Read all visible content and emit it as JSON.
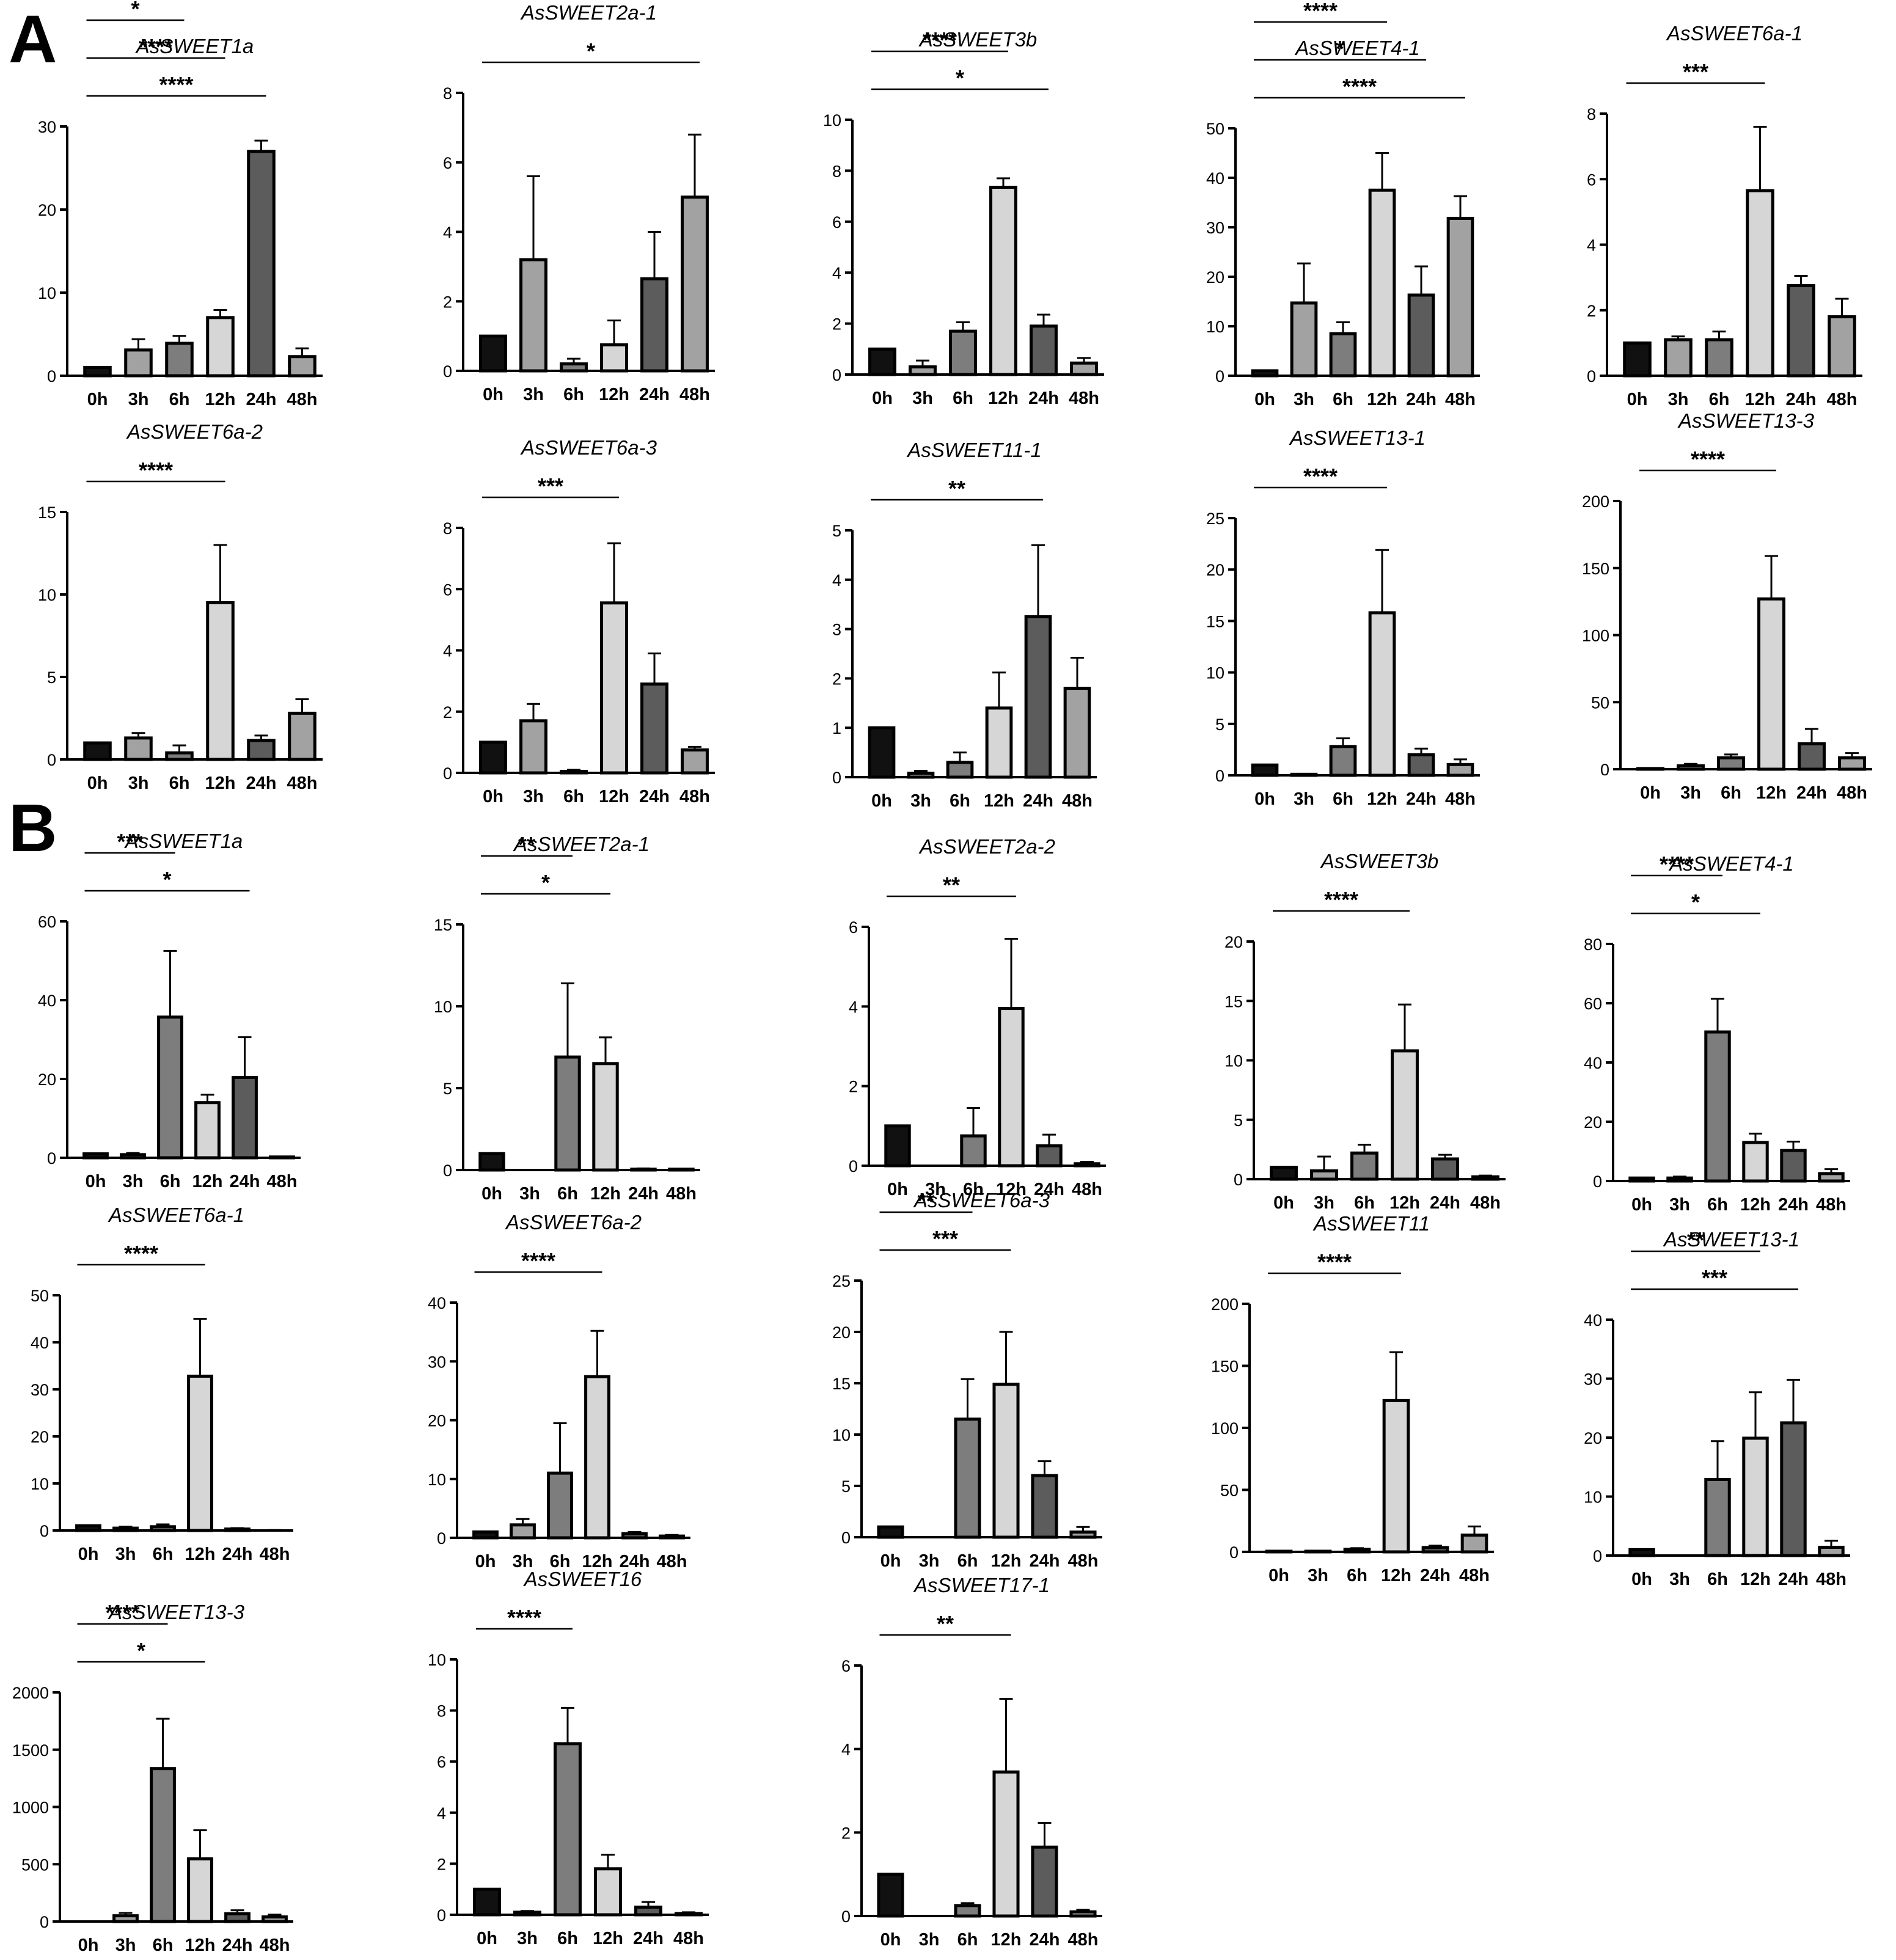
{
  "panels": {
    "A": "A",
    "B": "B"
  },
  "colors": {
    "0h": "#111111",
    "3h": "#a2a2a2",
    "6h": "#7d7d7d",
    "12h": "#d6d6d6",
    "24h": "#5c5c5c",
    "48h": "#a2a2a2",
    "stroke": "#000000"
  },
  "chart_data": [
    {
      "id": "A1",
      "type": "bar",
      "title": "AsSWEET1a",
      "categories": [
        "0h",
        "3h",
        "6h",
        "12h",
        "24h",
        "48h"
      ],
      "values": [
        1,
        3.1,
        3.9,
        7,
        27,
        2.3
      ],
      "errors": [
        0,
        1.3,
        0.9,
        0.9,
        1.3,
        1
      ],
      "ylim": [
        0,
        30
      ],
      "yticks": [
        0,
        10,
        20,
        30
      ],
      "significance": [
        {
          "from": "0h",
          "to": "6h",
          "label": "*"
        },
        {
          "from": "0h",
          "to": "12h",
          "label": "****"
        },
        {
          "from": "0h",
          "to": "24h",
          "label": "****"
        }
      ]
    },
    {
      "id": "A2",
      "type": "bar",
      "title": "AsSWEET2a-1",
      "categories": [
        "0h",
        "3h",
        "6h",
        "12h",
        "24h",
        "48h"
      ],
      "values": [
        1,
        3.2,
        0.2,
        0.75,
        2.65,
        5
      ],
      "errors": [
        0,
        2.4,
        0.15,
        0.7,
        1.35,
        1.8
      ],
      "ylim": [
        0,
        8
      ],
      "yticks": [
        0,
        2,
        4,
        6,
        8
      ],
      "significance": [
        {
          "from": "0h",
          "to": "48h",
          "label": "*"
        }
      ]
    },
    {
      "id": "A3",
      "type": "bar",
      "title": "AsSWEET3b",
      "categories": [
        "0h",
        "3h",
        "6h",
        "12h",
        "24h",
        "48h"
      ],
      "values": [
        1,
        0.3,
        1.7,
        7.35,
        1.9,
        0.45
      ],
      "errors": [
        0,
        0.25,
        0.35,
        0.35,
        0.45,
        0.2
      ],
      "ylim": [
        0,
        10
      ],
      "yticks": [
        0,
        2,
        4,
        6,
        8,
        10
      ],
      "significance": [
        {
          "from": "0h",
          "to": "12h",
          "label": "****"
        },
        {
          "from": "0h",
          "to": "24h",
          "label": "*"
        }
      ]
    },
    {
      "id": "A4",
      "type": "bar",
      "title": "AsSWEET4-1",
      "categories": [
        "0h",
        "3h",
        "6h",
        "12h",
        "24h",
        "48h"
      ],
      "values": [
        1,
        14.7,
        8.5,
        37.5,
        16.3,
        31.8
      ],
      "errors": [
        0,
        8,
        2.3,
        7.5,
        5.8,
        4.5
      ],
      "ylim": [
        0,
        50
      ],
      "yticks": [
        0,
        10,
        20,
        30,
        40,
        50
      ],
      "significance": [
        {
          "from": "0h",
          "to": "3h",
          "label": "*"
        },
        {
          "from": "0h",
          "to": "12h",
          "label": "****"
        },
        {
          "from": "0h",
          "to": "24h",
          "label": "*"
        },
        {
          "from": "0h",
          "to": "48h",
          "label": "****"
        }
      ]
    },
    {
      "id": "A5",
      "type": "bar",
      "title": "AsSWEET6a-1",
      "categories": [
        "0h",
        "3h",
        "6h",
        "12h",
        "24h",
        "48h"
      ],
      "values": [
        1,
        1.1,
        1.1,
        5.65,
        2.75,
        1.8
      ],
      "errors": [
        0,
        0.1,
        0.25,
        1.95,
        0.3,
        0.55
      ],
      "ylim": [
        0,
        8
      ],
      "yticks": [
        0,
        2,
        4,
        6,
        8
      ],
      "significance": [
        {
          "from": "0h",
          "to": "12h",
          "label": "***"
        }
      ]
    },
    {
      "id": "A6",
      "type": "bar",
      "title": "AsSWEET6a-2",
      "categories": [
        "0h",
        "3h",
        "6h",
        "12h",
        "24h",
        "48h"
      ],
      "values": [
        1,
        1.3,
        0.4,
        9.5,
        1.15,
        2.8
      ],
      "errors": [
        0,
        0.3,
        0.45,
        3.5,
        0.3,
        0.85
      ],
      "ylim": [
        0,
        15
      ],
      "yticks": [
        0,
        5,
        10,
        15
      ],
      "significance": [
        {
          "from": "0h",
          "to": "12h",
          "label": "****"
        }
      ]
    },
    {
      "id": "A7",
      "type": "bar",
      "title": "AsSWEET6a-3",
      "categories": [
        "0h",
        "3h",
        "6h",
        "12h",
        "24h",
        "48h"
      ],
      "values": [
        1,
        1.7,
        0.05,
        5.55,
        2.9,
        0.75
      ],
      "errors": [
        0,
        0.55,
        0.05,
        1.95,
        1,
        0.1
      ],
      "ylim": [
        0,
        8
      ],
      "yticks": [
        0,
        2,
        4,
        6,
        8
      ],
      "significance": [
        {
          "from": "0h",
          "to": "12h",
          "label": "***"
        }
      ]
    },
    {
      "id": "A8",
      "type": "bar",
      "title": "AsSWEET11-1",
      "categories": [
        "0h",
        "3h",
        "6h",
        "12h",
        "24h",
        "48h"
      ],
      "values": [
        1,
        0.08,
        0.3,
        1.4,
        3.25,
        1.8
      ],
      "errors": [
        0,
        0.05,
        0.2,
        0.72,
        1.45,
        0.62
      ],
      "ylim": [
        0,
        5
      ],
      "yticks": [
        0,
        1,
        2,
        3,
        4,
        5
      ],
      "significance": [
        {
          "from": "0h",
          "to": "24h",
          "label": "**"
        }
      ]
    },
    {
      "id": "A9",
      "type": "bar",
      "title": "AsSWEET13-1",
      "categories": [
        "0h",
        "3h",
        "6h",
        "12h",
        "24h",
        "48h"
      ],
      "values": [
        1,
        0.1,
        2.8,
        15.8,
        2,
        1.05
      ],
      "errors": [
        0,
        0.05,
        0.8,
        6.1,
        0.6,
        0.5
      ],
      "ylim": [
        0,
        25
      ],
      "yticks": [
        0,
        5,
        10,
        15,
        20,
        25
      ],
      "significance": [
        {
          "from": "0h",
          "to": "12h",
          "label": "****"
        }
      ]
    },
    {
      "id": "A10",
      "type": "bar",
      "title": "AsSWEET13-3",
      "categories": [
        "0h",
        "3h",
        "6h",
        "12h",
        "24h",
        "48h"
      ],
      "values": [
        0.5,
        2.5,
        8.5,
        127,
        19,
        8.5
      ],
      "errors": [
        0,
        1.5,
        2.5,
        32,
        11,
        3.5
      ],
      "ylim": [
        0,
        200
      ],
      "yticks": [
        0,
        50,
        100,
        150,
        200
      ],
      "significance": [
        {
          "from": "0h",
          "to": "12h",
          "label": "****"
        }
      ]
    },
    {
      "id": "B1",
      "type": "bar",
      "title": "AsSWEET1a",
      "categories": [
        "0h",
        "3h",
        "6h",
        "12h",
        "24h",
        "48h"
      ],
      "values": [
        1,
        0.8,
        35.7,
        14,
        20.4,
        0.2
      ],
      "errors": [
        0,
        0.4,
        16.8,
        2,
        10.2,
        0.1
      ],
      "ylim": [
        0,
        60
      ],
      "yticks": [
        0,
        20,
        40,
        60
      ],
      "significance": [
        {
          "from": "0h",
          "to": "6h",
          "label": "***"
        },
        {
          "from": "0h",
          "to": "24h",
          "label": "*"
        }
      ]
    },
    {
      "id": "B2",
      "type": "bar",
      "title": "AsSWEET2a-1",
      "categories": [
        "0h",
        "3h",
        "6h",
        "12h",
        "24h",
        "48h"
      ],
      "values": [
        1,
        0,
        6.9,
        6.5,
        0.05,
        0.05
      ],
      "errors": [
        0,
        0,
        4.5,
        1.6,
        0.05,
        0
      ],
      "ylim": [
        0,
        15
      ],
      "yticks": [
        0,
        5,
        10,
        15
      ],
      "significance": [
        {
          "from": "0h",
          "to": "6h",
          "label": "**"
        },
        {
          "from": "0h",
          "to": "12h",
          "label": "*"
        }
      ]
    },
    {
      "id": "B3",
      "type": "bar",
      "title": "AsSWEET2a-2",
      "categories": [
        "0h",
        "3h",
        "6h",
        "12h",
        "24h",
        "48h"
      ],
      "values": [
        1,
        0,
        0.75,
        3.95,
        0.5,
        0.05
      ],
      "errors": [
        0,
        0,
        0.7,
        1.75,
        0.28,
        0.05
      ],
      "ylim": [
        0,
        6
      ],
      "yticks": [
        0,
        2,
        4,
        6
      ],
      "significance": [
        {
          "from": "0h",
          "to": "12h",
          "label": "**"
        }
      ]
    },
    {
      "id": "B4",
      "type": "bar",
      "title": "AsSWEET3b",
      "categories": [
        "0h",
        "3h",
        "6h",
        "12h",
        "24h",
        "48h"
      ],
      "values": [
        1,
        0.7,
        2.2,
        10.8,
        1.7,
        0.2
      ],
      "errors": [
        0,
        1.2,
        0.7,
        3.9,
        0.35,
        0.1
      ],
      "ylim": [
        0,
        20
      ],
      "yticks": [
        0,
        5,
        10,
        15,
        20
      ],
      "significance": [
        {
          "from": "0h",
          "to": "12h",
          "label": "****"
        }
      ]
    },
    {
      "id": "B5",
      "type": "bar",
      "title": "AsSWEET4-1",
      "categories": [
        "0h",
        "3h",
        "6h",
        "12h",
        "24h",
        "48h"
      ],
      "values": [
        1,
        1,
        50.3,
        13,
        10.3,
        2.5
      ],
      "errors": [
        0,
        0.5,
        11.2,
        3,
        3,
        1.5
      ],
      "ylim": [
        0,
        80
      ],
      "yticks": [
        0,
        20,
        40,
        60,
        80
      ],
      "significance": [
        {
          "from": "0h",
          "to": "6h",
          "label": "****"
        },
        {
          "from": "0h",
          "to": "12h",
          "label": "*"
        }
      ]
    },
    {
      "id": "B6",
      "type": "bar",
      "title": "AsSWEET6a-1",
      "categories": [
        "0h",
        "3h",
        "6h",
        "12h",
        "24h",
        "48h"
      ],
      "values": [
        1,
        0.5,
        0.8,
        32.8,
        0.3,
        0.05
      ],
      "errors": [
        0,
        0.3,
        0.5,
        12.2,
        0.2,
        0.05
      ],
      "ylim": [
        0,
        50
      ],
      "yticks": [
        0,
        10,
        20,
        30,
        40,
        50
      ],
      "significance": [
        {
          "from": "0h",
          "to": "12h",
          "label": "****"
        }
      ]
    },
    {
      "id": "B7",
      "type": "bar",
      "title": "AsSWEET6a-2",
      "categories": [
        "0h",
        "3h",
        "6h",
        "12h",
        "24h",
        "48h"
      ],
      "values": [
        1,
        2.2,
        11,
        27.4,
        0.7,
        0.3
      ],
      "errors": [
        0,
        1,
        8.5,
        7.8,
        0.3,
        0.2
      ],
      "ylim": [
        0,
        40
      ],
      "yticks": [
        0,
        10,
        20,
        30,
        40
      ],
      "significance": [
        {
          "from": "0h",
          "to": "12h",
          "label": "****"
        }
      ]
    },
    {
      "id": "B8",
      "type": "bar",
      "title": "AsSWEET6a-3",
      "categories": [
        "0h",
        "3h",
        "6h",
        "12h",
        "24h",
        "48h"
      ],
      "values": [
        1,
        0,
        11.5,
        14.9,
        6,
        0.5
      ],
      "errors": [
        0,
        0,
        3.9,
        5.1,
        1.4,
        0.5
      ],
      "ylim": [
        0,
        25
      ],
      "yticks": [
        0,
        5,
        10,
        15,
        20,
        25
      ],
      "significance": [
        {
          "from": "0h",
          "to": "6h",
          "label": "**"
        },
        {
          "from": "0h",
          "to": "12h",
          "label": "***"
        }
      ]
    },
    {
      "id": "B9",
      "type": "bar",
      "title": "AsSWEET11",
      "categories": [
        "0h",
        "3h",
        "6h",
        "12h",
        "24h",
        "48h"
      ],
      "values": [
        0.5,
        0.5,
        2,
        122,
        3.5,
        13.5
      ],
      "errors": [
        0,
        0,
        1,
        39,
        1.5,
        7
      ],
      "ylim": [
        0,
        200
      ],
      "yticks": [
        0,
        50,
        100,
        150,
        200
      ],
      "significance": [
        {
          "from": "0h",
          "to": "12h",
          "label": "****"
        }
      ]
    },
    {
      "id": "B10",
      "type": "bar",
      "title": "AsSWEET13-1",
      "categories": [
        "0h",
        "3h",
        "6h",
        "12h",
        "24h",
        "48h"
      ],
      "values": [
        1,
        0,
        12.9,
        19.9,
        22.5,
        1.4
      ],
      "errors": [
        0,
        0,
        6.5,
        7.8,
        7.3,
        1.1
      ],
      "ylim": [
        0,
        40
      ],
      "yticks": [
        0,
        10,
        20,
        30,
        40
      ],
      "significance": [
        {
          "from": "0h",
          "to": "12h",
          "label": "**"
        },
        {
          "from": "0h",
          "to": "24h",
          "label": "***"
        }
      ]
    },
    {
      "id": "B11",
      "type": "bar",
      "title": "AsSWEET13-3",
      "categories": [
        "0h",
        "3h",
        "6h",
        "12h",
        "24h",
        "48h"
      ],
      "values": [
        1,
        50,
        1335,
        547,
        68,
        40
      ],
      "errors": [
        0,
        25,
        435,
        250,
        30,
        20
      ],
      "ylim": [
        0,
        2000
      ],
      "yticks": [
        0,
        500,
        1000,
        1500,
        2000
      ],
      "significance": [
        {
          "from": "0h",
          "to": "6h",
          "label": "****"
        },
        {
          "from": "0h",
          "to": "12h",
          "label": "*"
        }
      ]
    },
    {
      "id": "B12",
      "type": "bar",
      "title": "AsSWEET16",
      "categories": [
        "0h",
        "3h",
        "6h",
        "12h",
        "24h",
        "48h"
      ],
      "values": [
        1,
        0.1,
        6.7,
        1.8,
        0.3,
        0.05
      ],
      "errors": [
        0,
        0.05,
        1.4,
        0.55,
        0.2,
        0.05
      ],
      "ylim": [
        0,
        10
      ],
      "yticks": [
        0,
        2,
        4,
        6,
        8,
        10
      ],
      "significance": [
        {
          "from": "0h",
          "to": "6h",
          "label": "****"
        }
      ]
    },
    {
      "id": "B13",
      "type": "bar",
      "title": "AsSWEET17-1",
      "categories": [
        "0h",
        "3h",
        "6h",
        "12h",
        "24h",
        "48h"
      ],
      "values": [
        1,
        0,
        0.25,
        3.45,
        1.65,
        0.1
      ],
      "errors": [
        0,
        0,
        0.06,
        1.75,
        0.58,
        0.05
      ],
      "ylim": [
        0,
        6
      ],
      "yticks": [
        0,
        2,
        4,
        6
      ],
      "significance": [
        {
          "from": "0h",
          "to": "12h",
          "label": "**"
        }
      ]
    }
  ]
}
